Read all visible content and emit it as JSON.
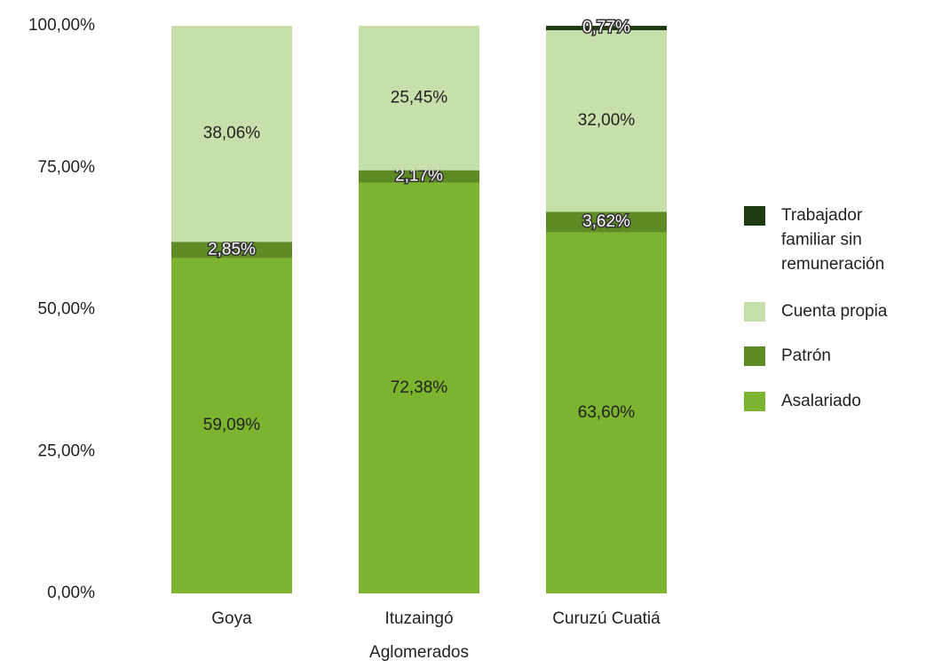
{
  "chart_data": {
    "type": "stacked_bar",
    "categories": [
      "Goya",
      "Ituzaingó",
      "Curuzú Cuatiá"
    ],
    "x_label": "Aglomerados",
    "series": [
      {
        "name": "Asalariado",
        "color": "#7db42f",
        "values": [
          59.09,
          72.38,
          63.6
        ],
        "value_labels": [
          "59,09%",
          "72,38%",
          "63,60%"
        ]
      },
      {
        "name": "Patrón",
        "color": "#5f8b25",
        "values": [
          2.85,
          2.17,
          3.62
        ],
        "value_labels": [
          "2,85%",
          "2,17%",
          "3,62%"
        ]
      },
      {
        "name": "Cuenta propia",
        "color": "#c7e0ab",
        "values": [
          38.06,
          25.45,
          32.0
        ],
        "value_labels": [
          "38,06%",
          "25,45%",
          "32,00%"
        ]
      },
      {
        "name": "Trabajador familiar sin remuneración",
        "color": "#1e3a10",
        "values": [
          null,
          null,
          0.77
        ],
        "value_labels": [
          null,
          null,
          "0,77%"
        ]
      }
    ],
    "ylim": [
      0,
      100
    ],
    "yticks": [
      {
        "value": 0,
        "label": "0,00%"
      },
      {
        "value": 25,
        "label": "25,00%"
      },
      {
        "value": 50,
        "label": "50,00%"
      },
      {
        "value": 75,
        "label": "75,00%"
      },
      {
        "value": 100,
        "label": "100,00%"
      }
    ],
    "legend": "right"
  }
}
